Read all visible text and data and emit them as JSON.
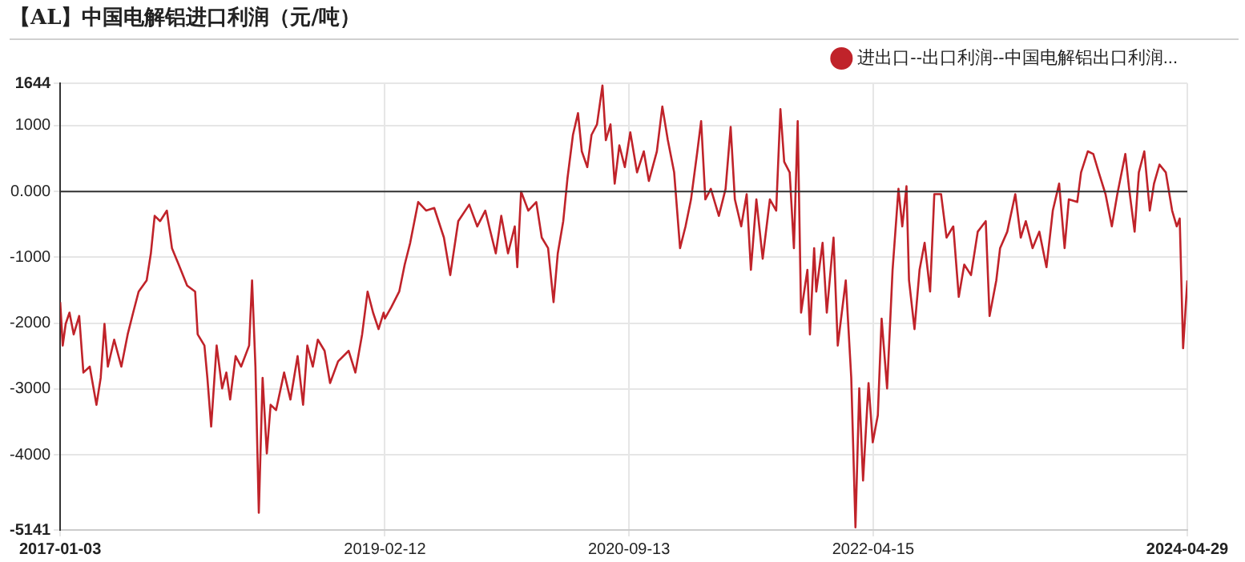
{
  "chart_data": {
    "type": "line",
    "title": "【AL】中国电解铝进口利润（元/吨）",
    "x": [
      "2017-01-03",
      "2017-01-09",
      "2017-01-16",
      "2017-01-25",
      "2017-02-04",
      "2017-02-17",
      "2017-02-27",
      "2017-03-14",
      "2017-03-30",
      "2017-04-09",
      "2017-04-18",
      "2017-04-26",
      "2017-05-11",
      "2017-05-28",
      "2017-06-12",
      "2017-06-25",
      "2017-07-08",
      "2017-07-27",
      "2017-08-06",
      "2017-08-15",
      "2017-08-28",
      "2017-09-13",
      "2017-09-25",
      "2017-10-11",
      "2017-10-31",
      "2017-11-19",
      "2017-11-25",
      "2017-12-11",
      "2017-12-18",
      "2017-12-27",
      "2018-01-09",
      "2018-01-22",
      "2018-02-01",
      "2018-02-10",
      "2018-02-23",
      "2018-03-08",
      "2018-03-27",
      "2018-04-03",
      "2018-04-11",
      "2018-04-19",
      "2018-04-28",
      "2018-05-08",
      "2018-05-17",
      "2018-05-30",
      "2018-06-18",
      "2018-07-03",
      "2018-07-20",
      "2018-08-02",
      "2018-08-12",
      "2018-08-25",
      "2018-09-06",
      "2018-09-22",
      "2018-10-05",
      "2018-10-24",
      "2018-11-18",
      "2018-12-04",
      "2018-12-20",
      "2019-01-02",
      "2019-01-15",
      "2019-01-28",
      "2019-02-09",
      "2019-02-12",
      "2019-02-27",
      "2019-03-18",
      "2019-03-31",
      "2019-04-13",
      "2019-05-02",
      "2019-05-21",
      "2019-06-09",
      "2019-07-02",
      "2019-07-17",
      "2019-08-05",
      "2019-08-31",
      "2019-09-19",
      "2019-10-08",
      "2019-11-02",
      "2019-11-15",
      "2019-12-01",
      "2019-12-17",
      "2019-12-23",
      "2020-01-01",
      "2020-01-18",
      "2020-02-06",
      "2020-02-19",
      "2020-03-05",
      "2020-03-18",
      "2020-03-28",
      "2020-04-10",
      "2020-04-20",
      "2020-05-03",
      "2020-05-15",
      "2020-05-24",
      "2020-06-06",
      "2020-06-16",
      "2020-06-29",
      "2020-07-12",
      "2020-07-20",
      "2020-07-31",
      "2020-08-10",
      "2020-08-21",
      "2020-09-03",
      "2020-09-16",
      "2020-10-02",
      "2020-10-18",
      "2020-10-30",
      "2020-11-18",
      "2020-12-01",
      "2020-12-14",
      "2020-12-29",
      "2021-01-12",
      "2021-01-25",
      "2021-02-07",
      "2021-02-22",
      "2021-03-03",
      "2021-03-13",
      "2021-03-26",
      "2021-04-14",
      "2021-04-30",
      "2021-05-12",
      "2021-05-22",
      "2021-06-06",
      "2021-06-19",
      "2021-06-29",
      "2021-07-12",
      "2021-07-27",
      "2021-08-13",
      "2021-08-28",
      "2021-09-07",
      "2021-09-16",
      "2021-09-29",
      "2021-10-09",
      "2021-10-18",
      "2021-10-26",
      "2021-11-10",
      "2021-11-16",
      "2021-11-26",
      "2021-12-01",
      "2021-12-16",
      "2021-12-26",
      "2022-01-11",
      "2022-01-21",
      "2022-02-09",
      "2022-02-22",
      "2022-03-04",
      "2022-03-13",
      "2022-03-22",
      "2022-04-04",
      "2022-04-14",
      "2022-04-26",
      "2022-05-05",
      "2022-05-18",
      "2022-05-31",
      "2022-06-14",
      "2022-06-23",
      "2022-07-03",
      "2022-07-09",
      "2022-07-22",
      "2022-08-03",
      "2022-08-15",
      "2022-08-28",
      "2022-09-07",
      "2022-09-23",
      "2022-10-06",
      "2022-10-22",
      "2022-11-04",
      "2022-11-17",
      "2022-12-03",
      "2022-12-19",
      "2023-01-07",
      "2023-01-16",
      "2023-02-01",
      "2023-02-10",
      "2023-02-27",
      "2023-03-18",
      "2023-03-31",
      "2023-04-12",
      "2023-04-28",
      "2023-05-14",
      "2023-05-31",
      "2023-06-15",
      "2023-06-30",
      "2023-07-13",
      "2023-07-23",
      "2023-08-12",
      "2023-08-21",
      "2023-09-06",
      "2023-09-19",
      "2023-10-02",
      "2023-10-18",
      "2023-11-02",
      "2023-11-15",
      "2023-12-04",
      "2023-12-13",
      "2023-12-26",
      "2024-01-05",
      "2024-01-18",
      "2024-01-31",
      "2024-02-10",
      "2024-02-23",
      "2024-03-09",
      "2024-03-24",
      "2024-04-04",
      "2024-04-11",
      "2024-04-19",
      "2024-04-29"
    ],
    "series": [
      {
        "name": "进出口--出口利润--中国电解铝出口利润...",
        "color": "#c0232a",
        "values": [
          -1680,
          -2340,
          -2010,
          -1840,
          -2170,
          -1890,
          -2750,
          -2660,
          -3240,
          -2830,
          -2010,
          -2660,
          -2250,
          -2660,
          -2170,
          -1840,
          -1520,
          -1350,
          -940,
          -370,
          -450,
          -290,
          -860,
          -1110,
          -1430,
          -1520,
          -2170,
          -2340,
          -2830,
          -3570,
          -2340,
          -2990,
          -2750,
          -3160,
          -2500,
          -2660,
          -2340,
          -1350,
          -2660,
          -4880,
          -2830,
          -3980,
          -3240,
          -3320,
          -2750,
          -3160,
          -2500,
          -3240,
          -2340,
          -2660,
          -2250,
          -2420,
          -2910,
          -2580,
          -2420,
          -2750,
          -2170,
          -1520,
          -1840,
          -2090,
          -1840,
          -1930,
          -1760,
          -1520,
          -1110,
          -780,
          -160,
          -290,
          -250,
          -700,
          -1270,
          -450,
          -200,
          -530,
          -290,
          -940,
          -370,
          -940,
          -530,
          -1150,
          0,
          -290,
          -160,
          -700,
          -860,
          -1680,
          -940,
          -450,
          200,
          860,
          1190,
          610,
          370,
          860,
          1020,
          1610,
          780,
          1020,
          120,
          700,
          370,
          900,
          290,
          610,
          160,
          610,
          1290,
          780,
          290,
          -860,
          -530,
          -120,
          610,
          1070,
          -120,
          40,
          -370,
          40,
          980,
          -120,
          -530,
          -40,
          -1190,
          -120,
          -1020,
          -120,
          -290,
          1250,
          450,
          290,
          -860,
          1070,
          -1840,
          -1190,
          -2170,
          -860,
          -1520,
          -780,
          -1840,
          -700,
          -2340,
          -1350,
          -2830,
          -5100,
          -2990,
          -4390,
          -2910,
          -3810,
          -3400,
          -1930,
          -2990,
          -1190,
          40,
          -530,
          80,
          -1350,
          -2090,
          -1190,
          -780,
          -1520,
          -40,
          -40,
          -700,
          -530,
          -1600,
          -1110,
          -1270,
          -610,
          -450,
          -1890,
          -1350,
          -860,
          -610,
          -40,
          -700,
          -450,
          -860,
          -610,
          -1150,
          -290,
          120,
          -860,
          -120,
          -160,
          290,
          610,
          570,
          290,
          -40,
          -530,
          -40,
          570,
          40,
          -610,
          290,
          610,
          -290,
          120,
          410,
          290,
          -290,
          -530,
          -410,
          -2380,
          -1350
        ]
      }
    ],
    "xlim": [
      "2017-01-03",
      "2024-04-29"
    ],
    "xticks": [
      "2017-01-03",
      "2019-02-12",
      "2020-09-13",
      "2022-04-15",
      "2024-04-29"
    ],
    "ylim": [
      -5141,
      1644
    ],
    "yticks": [
      -5141,
      -4000,
      -3000,
      -2000,
      -1000,
      {
        "value": 0,
        "label": "0.000"
      },
      1000,
      1644
    ],
    "ref_lines": [
      {
        "axis": "y",
        "value": 0,
        "color": "#333333"
      }
    ],
    "grid": true,
    "legend": "top right",
    "marker": "none",
    "line_style": "solid"
  }
}
